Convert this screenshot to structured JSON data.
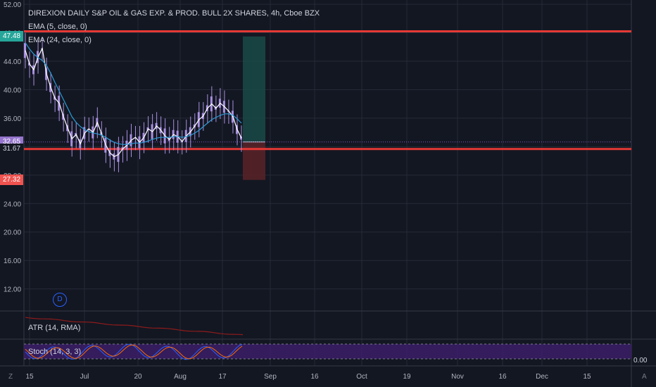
{
  "header": {
    "title": "DIREXION DAILY S&P OIL & GAS EXP. & PROD. BULL 2X SHARES, 4h, Cboe BZX",
    "ema1": "EMA (5, close, 0)",
    "ema2": "EMA (24, close, 0)"
  },
  "price_badges": {
    "upper": "47.48",
    "current": "32.65",
    "lower_line": "31.67",
    "stop": "27.32"
  },
  "event_marker": "D",
  "indicators": {
    "atr_label": "ATR (14, RMA)",
    "stoch_label": "Stoch (14, 3, 3)",
    "stoch_value": "0.00"
  },
  "corners": {
    "left": "Z",
    "right": "A"
  },
  "colors": {
    "background": "#131722",
    "candle": "#a88fe0",
    "ema_fast": "#ffffff",
    "ema_slow": "#2a9bd6",
    "level_line": "#e53935",
    "target_zone": "#1a4a46",
    "stop_zone": "#5a2328",
    "badge_upper": "#26a69a",
    "badge_current": "#9575cd",
    "badge_stop": "#ef5350",
    "atr": "#8e1b1b",
    "stoch_band": "#3d1e6d"
  },
  "chart_data": {
    "type": "line",
    "title": "DIREXION DAILY S&P OIL & GAS EXP. & PROD. BULL 2X SHARES, 4h, Cboe BZX",
    "y_ticks": [
      52.0,
      48.0,
      44.0,
      40.0,
      36.0,
      32.0,
      28.0,
      24.0,
      20.0,
      16.0,
      12.0
    ],
    "ylim": [
      8.9,
      52.6
    ],
    "x_ticks": [
      "15",
      "Jul",
      "20",
      "Aug",
      "17",
      "Sep",
      "16",
      "Oct",
      "19",
      "Nov",
      "16",
      "Dec",
      "15"
    ],
    "levels": [
      48.2,
      31.67
    ],
    "position": {
      "entry": 32.65,
      "target": 47.48,
      "stop": 27.32
    },
    "series": [
      {
        "name": "EMA (5, close, 0)",
        "values": [
          45.5,
          43.6,
          42.8,
          44.6,
          45.8,
          42.2,
          40.3,
          38.8,
          38.1,
          36.2,
          34.6,
          33.1,
          33.7,
          32.4,
          33.9,
          34.5,
          34.0,
          35.4,
          33.8,
          32.2,
          31.1,
          30.6,
          30.9,
          31.7,
          32.2,
          32.9,
          33.3,
          32.6,
          33.3,
          34.5,
          34.1,
          34.9,
          34.3,
          33.5,
          33.0,
          33.7,
          33.4,
          32.7,
          33.5,
          34.1,
          34.9,
          35.8,
          36.3,
          37.4,
          38.0,
          37.4,
          38.1,
          37.6,
          37.0,
          36.2,
          34.4,
          33.2
        ]
      },
      {
        "name": "EMA (24, close, 0)",
        "values": [
          46.6,
          45.7,
          45.0,
          44.5,
          44.1,
          43.4,
          42.3,
          41.0,
          39.8,
          38.6,
          37.4,
          36.2,
          35.4,
          34.8,
          34.4,
          34.1,
          33.9,
          33.8,
          33.6,
          33.3,
          32.9,
          32.6,
          32.4,
          32.3,
          32.3,
          32.4,
          32.5,
          32.5,
          32.6,
          32.8,
          33.0,
          33.2,
          33.3,
          33.3,
          33.3,
          33.4,
          33.4,
          33.3,
          33.4,
          33.6,
          33.9,
          34.3,
          34.8,
          35.3,
          35.8,
          36.1,
          36.4,
          36.6,
          36.6,
          36.4,
          35.9,
          35.3
        ]
      }
    ]
  }
}
